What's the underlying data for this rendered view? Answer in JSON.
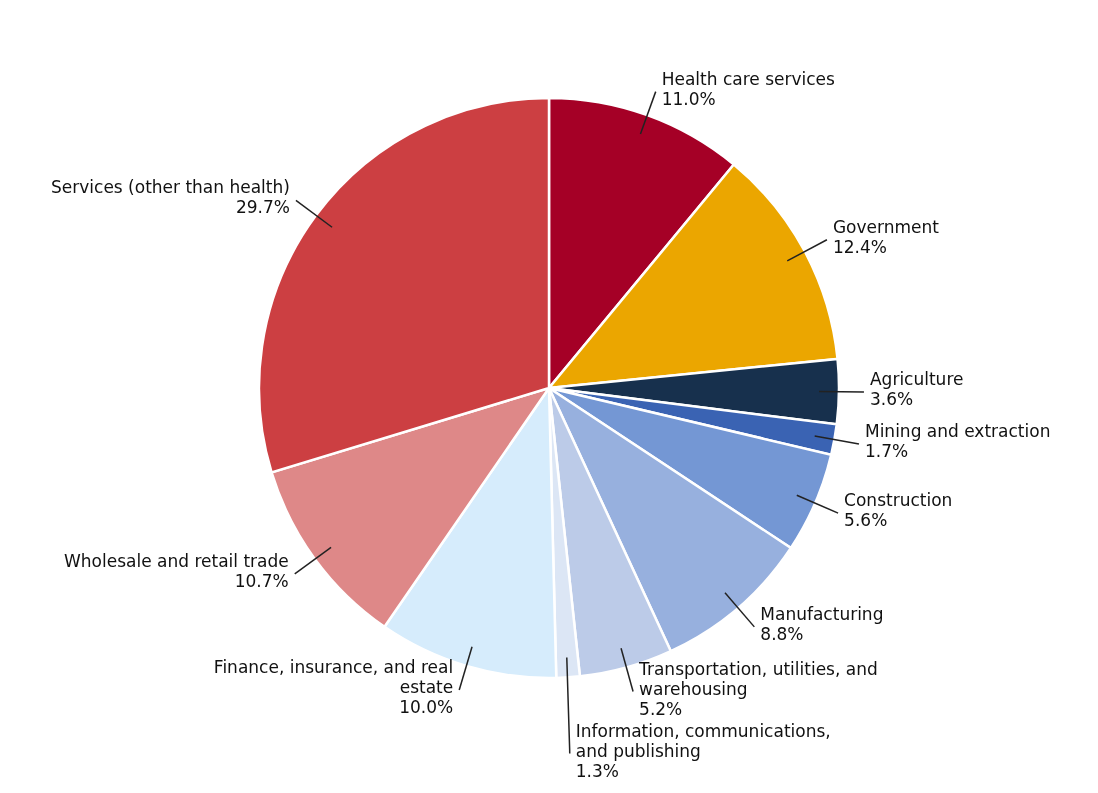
{
  "chart_data": {
    "type": "pie",
    "categories": [
      "Health care services",
      "Government",
      "Agriculture",
      "Mining and extraction",
      "Construction",
      "Manufacturing",
      "Transportation, utilities, and warehousing",
      "Information, communications, and publishing",
      "Finance, insurance, and real estate",
      "Wholesale and retail trade",
      "Services (other than health)"
    ],
    "values": [
      11.0,
      12.4,
      3.6,
      1.7,
      5.6,
      8.8,
      5.2,
      1.3,
      10.0,
      10.7,
      29.7
    ],
    "value_labels": [
      "11.0%",
      "12.4%",
      "3.6%",
      "1.7%",
      "5.6%",
      "8.8%",
      "5.2%",
      "1.3%",
      "10.0%",
      "10.7%",
      "29.7%"
    ],
    "colors": [
      "#a50026",
      "#eba600",
      "#17304d",
      "#3a63b3",
      "#7497d4",
      "#97b0de",
      "#bccbe8",
      "#dce6f5",
      "#d6ecfc",
      "#de8888",
      "#cc3f42"
    ]
  }
}
